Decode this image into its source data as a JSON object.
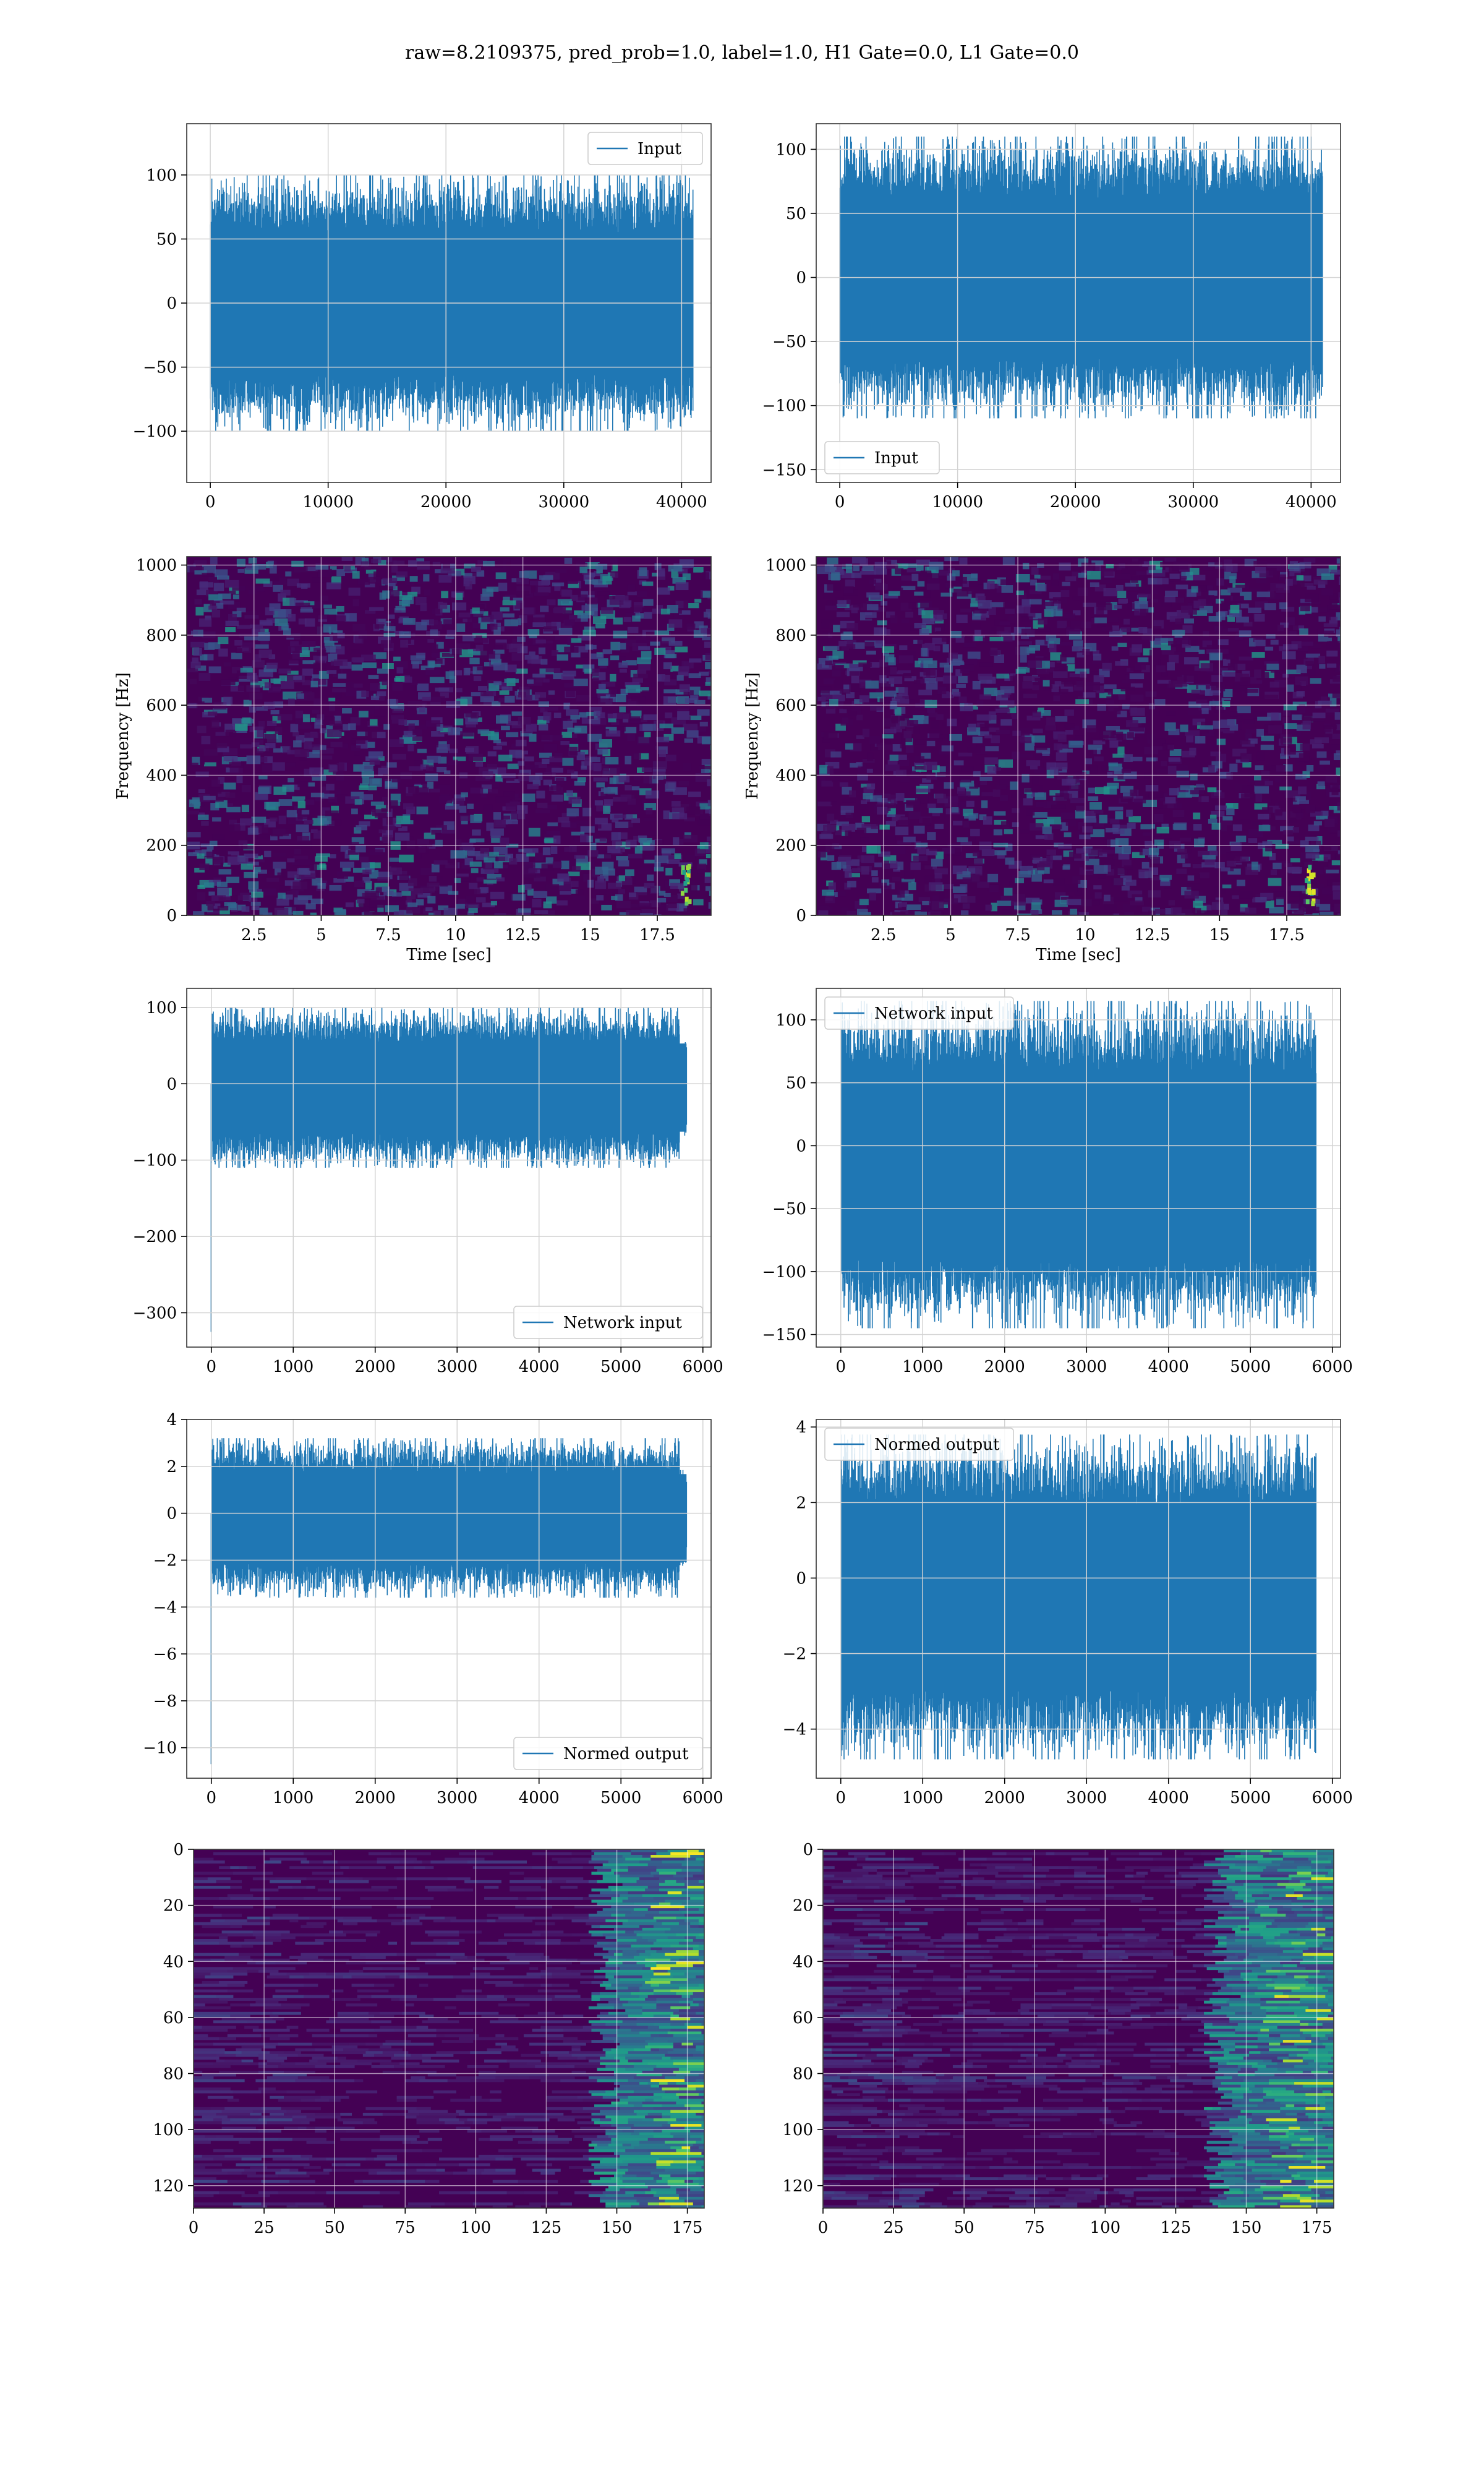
{
  "title": "raw=8.2109375, pred_prob=1.0, label=1.0, H1 Gate=0.0, L1 Gate=0.0",
  "colors": {
    "line": "#1f77b4",
    "grid": "#d3d3d3",
    "viridis_low": "#440154",
    "viridis_mid": "#21918c",
    "viridis_high": "#fde725"
  },
  "chart_data": [
    {
      "type": "line",
      "legend": "Input",
      "legend_loc": "upper right",
      "xlim": [
        -2000,
        42500
      ],
      "ylim": [
        -140,
        140
      ],
      "xticks": [
        0,
        10000,
        20000,
        30000,
        40000
      ],
      "yticks": [
        -100,
        -50,
        0,
        50,
        100
      ],
      "n_points": 40960,
      "envelope": [
        -100,
        100
      ],
      "grid": true
    },
    {
      "type": "line",
      "legend": "Input",
      "legend_loc": "lower left",
      "xlim": [
        -2000,
        42500
      ],
      "ylim": [
        -160,
        120
      ],
      "xticks": [
        0,
        10000,
        20000,
        30000,
        40000
      ],
      "yticks": [
        -150,
        -100,
        -50,
        0,
        50,
        100
      ],
      "n_points": 40960,
      "envelope": [
        -110,
        110
      ],
      "grid": true
    },
    {
      "type": "heatmap",
      "xlabel": "Time [sec]",
      "ylabel": "Frequency [Hz]",
      "xlim": [
        0,
        19.5
      ],
      "ylim": [
        0,
        1024
      ],
      "xticks": [
        2.5,
        5.0,
        7.5,
        10.0,
        12.5,
        15.0,
        17.5
      ],
      "yticks": [
        0,
        200,
        400,
        600,
        800,
        1000
      ],
      "colormap": "viridis",
      "hotspot_time": 18.5,
      "grid": true
    },
    {
      "type": "heatmap",
      "xlabel": "Time [sec]",
      "ylabel": "Frequency [Hz]",
      "xlim": [
        0,
        19.5
      ],
      "ylim": [
        0,
        1024
      ],
      "xticks": [
        2.5,
        5.0,
        7.5,
        10.0,
        12.5,
        15.0,
        17.5
      ],
      "yticks": [
        0,
        200,
        400,
        600,
        800,
        1000
      ],
      "colormap": "viridis",
      "hotspot_time": 18.3,
      "grid": true
    },
    {
      "type": "line",
      "legend": "Network input",
      "legend_loc": "lower right",
      "xlim": [
        -300,
        6100
      ],
      "ylim": [
        -345,
        125
      ],
      "xticks": [
        0,
        1000,
        2000,
        3000,
        4000,
        5000,
        6000
      ],
      "yticks": [
        -300,
        -200,
        -100,
        0,
        100
      ],
      "n_points": 5800,
      "envelope": [
        -110,
        100
      ],
      "spike_at_start": -325,
      "grid": true
    },
    {
      "type": "line",
      "legend": "Network input",
      "legend_loc": "upper left",
      "xlim": [
        -300,
        6100
      ],
      "ylim": [
        -160,
        125
      ],
      "xticks": [
        0,
        1000,
        2000,
        3000,
        4000,
        5000,
        6000
      ],
      "yticks": [
        -150,
        -100,
        -50,
        0,
        50,
        100
      ],
      "n_points": 5800,
      "envelope": [
        -145,
        115
      ],
      "grid": true
    },
    {
      "type": "line",
      "legend": "Normed output",
      "legend_loc": "lower right",
      "xlim": [
        -300,
        6100
      ],
      "ylim": [
        -11.3,
        4.0
      ],
      "xticks": [
        0,
        1000,
        2000,
        3000,
        4000,
        5000,
        6000
      ],
      "yticks": [
        -10,
        -8,
        -6,
        -4,
        -2,
        0,
        2,
        4
      ],
      "n_points": 5800,
      "envelope": [
        -3.6,
        3.2
      ],
      "spike_at_start": -10.7,
      "grid": true
    },
    {
      "type": "line",
      "legend": "Normed output",
      "legend_loc": "upper left",
      "xlim": [
        -300,
        6100
      ],
      "ylim": [
        -5.3,
        4.2
      ],
      "xticks": [
        0,
        1000,
        2000,
        3000,
        4000,
        5000,
        6000
      ],
      "yticks": [
        -4,
        -2,
        0,
        2,
        4
      ],
      "n_points": 5800,
      "envelope": [
        -4.8,
        3.8
      ],
      "grid": true
    },
    {
      "type": "heatmap",
      "xlim": [
        0,
        181
      ],
      "ylim": [
        128,
        0
      ],
      "xticks": [
        0,
        25,
        50,
        75,
        100,
        125,
        150,
        175
      ],
      "yticks": [
        0,
        20,
        40,
        60,
        80,
        100,
        120
      ],
      "colormap": "viridis",
      "hot_columns": [
        160,
        175
      ],
      "grid": true
    },
    {
      "type": "heatmap",
      "xlim": [
        0,
        181
      ],
      "ylim": [
        128,
        0
      ],
      "xticks": [
        0,
        25,
        50,
        75,
        100,
        125,
        150,
        175
      ],
      "yticks": [
        0,
        20,
        40,
        60,
        80,
        100,
        120
      ],
      "colormap": "viridis",
      "hot_columns": [
        155,
        175
      ],
      "grid": true
    }
  ]
}
